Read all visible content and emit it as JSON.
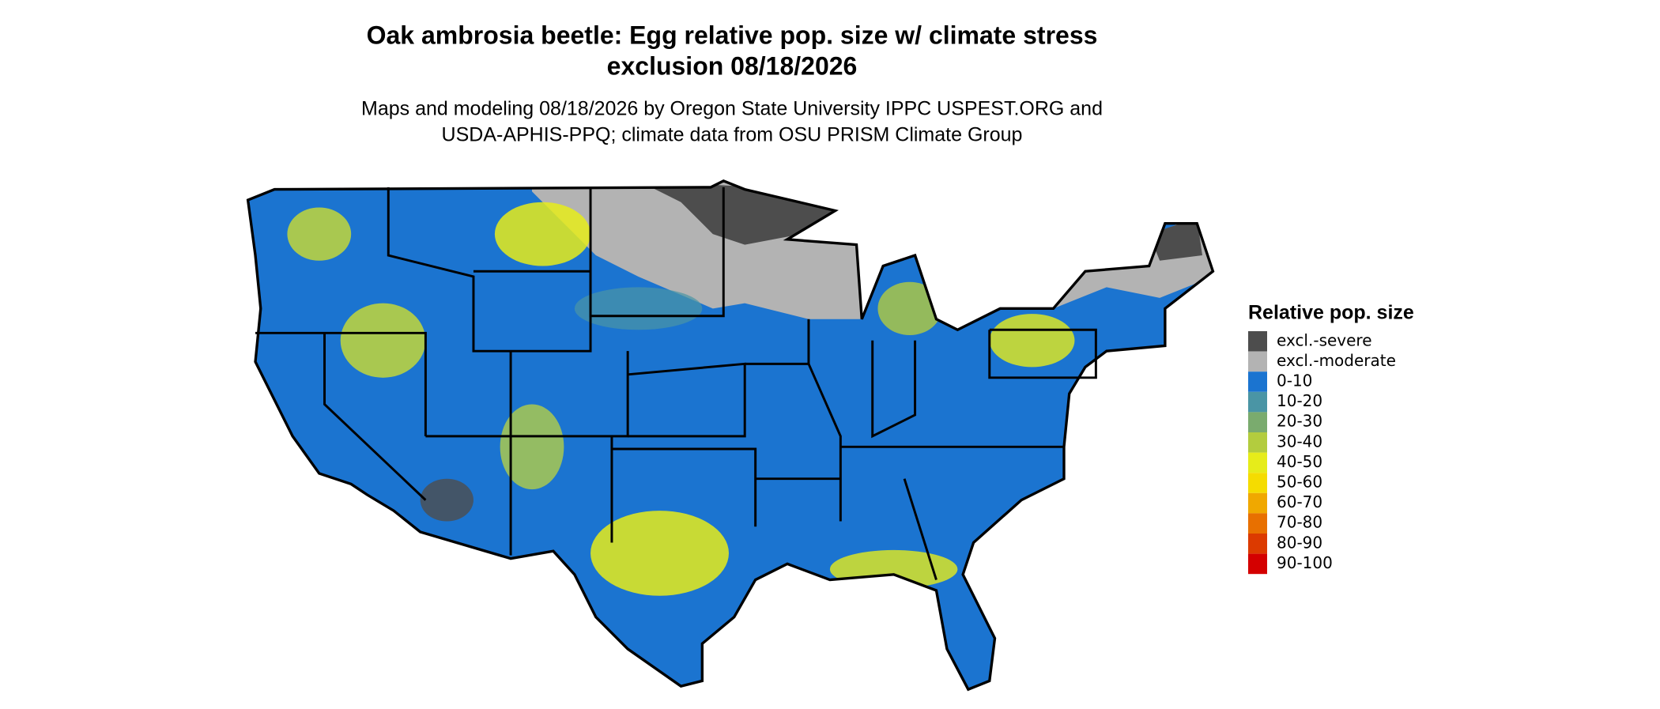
{
  "title": [
    "Oak ambrosia beetle: Egg relative pop. size w/ climate stress",
    "exclusion 08/18/2026"
  ],
  "subtitle": [
    "Maps and modeling 08/18/2026 by Oregon State University IPPC USPEST.ORG and",
    "USDA-APHIS-PPQ; climate data from OSU PRISM Climate Group"
  ],
  "legend": {
    "title": "Relative pop. size",
    "items": [
      {
        "label": "excl.-severe",
        "color": "#4d4d4d"
      },
      {
        "label": "excl.-moderate",
        "color": "#b3b3b3"
      },
      {
        "label": "0-10",
        "color": "#1b74d0"
      },
      {
        "label": "10-20",
        "color": "#4a95a5"
      },
      {
        "label": "20-30",
        "color": "#7aab6e"
      },
      {
        "label": "30-40",
        "color": "#b3cc3e"
      },
      {
        "label": "40-50",
        "color": "#e6ec1a"
      },
      {
        "label": "50-60",
        "color": "#f5dc00"
      },
      {
        "label": "60-70",
        "color": "#f0a800"
      },
      {
        "label": "70-80",
        "color": "#e87000"
      },
      {
        "label": "80-90",
        "color": "#dc3a00"
      },
      {
        "label": "90-100",
        "color": "#d40000"
      }
    ]
  }
}
